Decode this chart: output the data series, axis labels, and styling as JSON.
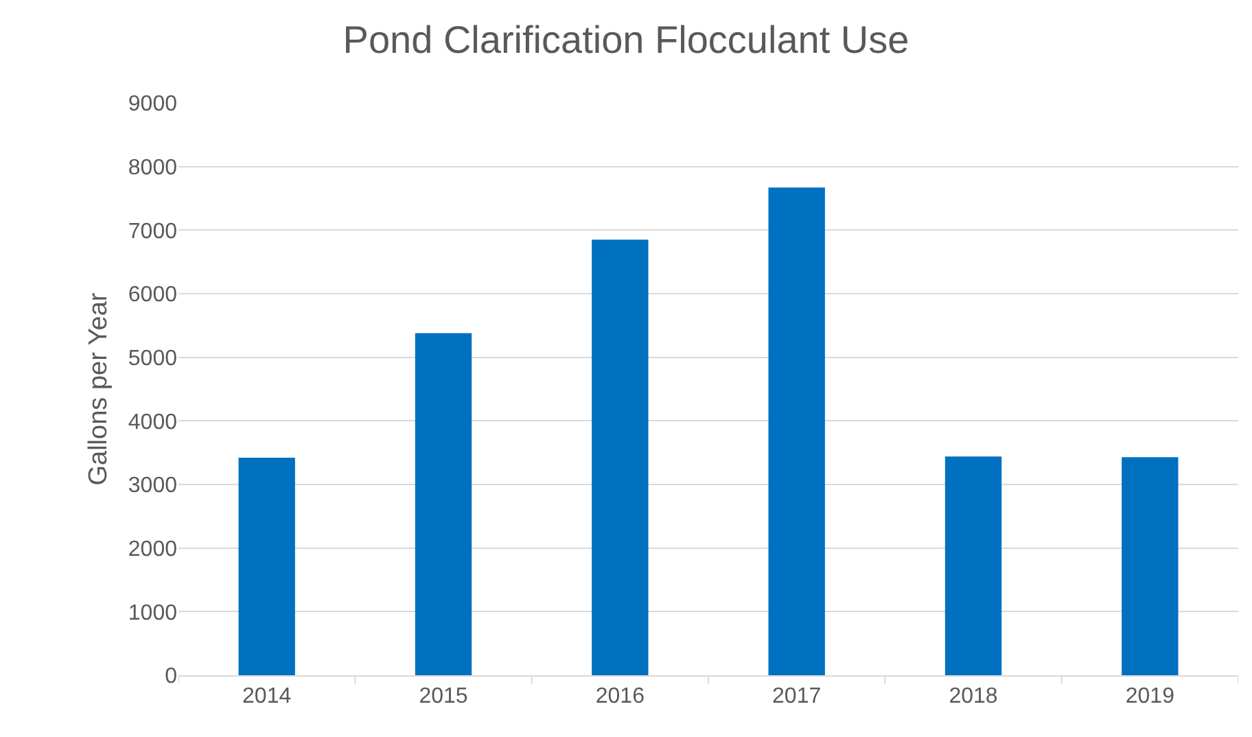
{
  "chart_data": {
    "type": "bar",
    "title": "Pond Clarification Flocculant Use",
    "ylabel": "Gallons per Year",
    "categories": [
      "2014",
      "2015",
      "2016",
      "2017",
      "2018",
      "2019"
    ],
    "values": [
      3420,
      5380,
      6850,
      7670,
      3440,
      3430
    ],
    "color": "#0070c0",
    "ylim": [
      0,
      9000
    ],
    "yticks": [
      0,
      1000,
      2000,
      3000,
      4000,
      5000,
      6000,
      7000,
      8000,
      9000
    ],
    "grid": "y"
  }
}
